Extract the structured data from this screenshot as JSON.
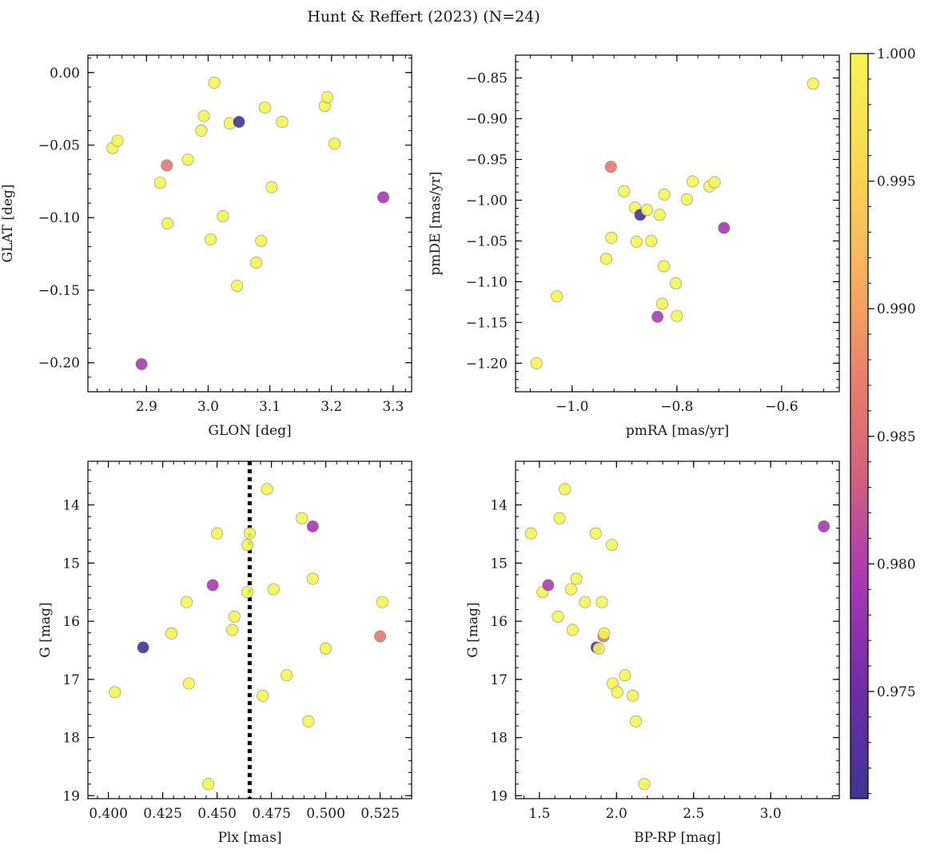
{
  "figure": {
    "title": "Hunt & Reffert (2023) (N=24)"
  },
  "colors": {
    "cmap_stops": [
      "#3d3593",
      "#6b2ea6",
      "#a737b3",
      "#d0607e",
      "#e9826a",
      "#f9b45c",
      "#f7da55",
      "#f4f552"
    ],
    "marker_edge": "#8a8a8a",
    "vline": "#000000"
  },
  "colorbar": {
    "min": 0.9708,
    "max": 1.0,
    "ticks": [
      0.975,
      0.98,
      0.985,
      0.99,
      0.995,
      1.0
    ],
    "tick_labels": [
      "0.975",
      "0.980",
      "0.985",
      "0.990",
      "0.995",
      "1.000"
    ]
  },
  "chart_data": [
    {
      "type": "scatter",
      "id": "glon-glat",
      "xlabel": "GLON [deg]",
      "ylabel": "GLAT [deg]",
      "xlim": [
        2.805,
        3.33
      ],
      "ylim": [
        -0.22,
        0.012
      ],
      "invert_y": false,
      "xticks": [
        2.9,
        3.0,
        3.1,
        3.2,
        3.3
      ],
      "xtick_labels": [
        "2.9",
        "3.0",
        "3.1",
        "3.2",
        "3.3"
      ],
      "xminor": 0.02,
      "yticks": [
        0.0,
        -0.05,
        -0.1,
        -0.15,
        -0.2
      ],
      "ytick_labels": [
        "0.00",
        "−0.05",
        "−0.10",
        "−0.15",
        "−0.20"
      ],
      "yminor": 0.01,
      "points": [
        {
          "x": 2.845,
          "y": -0.052,
          "c": 1.0
        },
        {
          "x": 2.853,
          "y": -0.047,
          "c": 1.0
        },
        {
          "x": 2.892,
          "y": -0.201,
          "c": 0.9795
        },
        {
          "x": 2.922,
          "y": -0.076,
          "c": 1.0
        },
        {
          "x": 2.933,
          "y": -0.064,
          "c": 0.9865
        },
        {
          "x": 2.934,
          "y": -0.104,
          "c": 1.0
        },
        {
          "x": 2.967,
          "y": -0.06,
          "c": 1.0
        },
        {
          "x": 2.989,
          "y": -0.04,
          "c": 1.0
        },
        {
          "x": 2.993,
          "y": -0.03,
          "c": 1.0
        },
        {
          "x": 3.004,
          "y": -0.115,
          "c": 1.0
        },
        {
          "x": 3.01,
          "y": -0.007,
          "c": 1.0
        },
        {
          "x": 3.024,
          "y": -0.099,
          "c": 1.0
        },
        {
          "x": 3.035,
          "y": -0.035,
          "c": 1.0
        },
        {
          "x": 3.047,
          "y": -0.147,
          "c": 1.0
        },
        {
          "x": 3.05,
          "y": -0.034,
          "c": 0.9712
        },
        {
          "x": 3.078,
          "y": -0.131,
          "c": 1.0
        },
        {
          "x": 3.086,
          "y": -0.116,
          "c": 1.0
        },
        {
          "x": 3.092,
          "y": -0.024,
          "c": 1.0
        },
        {
          "x": 3.103,
          "y": -0.079,
          "c": 1.0
        },
        {
          "x": 3.12,
          "y": -0.034,
          "c": 1.0
        },
        {
          "x": 3.189,
          "y": -0.023,
          "c": 1.0
        },
        {
          "x": 3.193,
          "y": -0.017,
          "c": 1.0
        },
        {
          "x": 3.205,
          "y": -0.049,
          "c": 1.0
        },
        {
          "x": 3.284,
          "y": -0.086,
          "c": 0.979
        }
      ]
    },
    {
      "type": "scatter",
      "id": "pmra-pmde",
      "xlabel": "pmRA [mas/yr]",
      "ylabel": "pmDE [mas/yr]",
      "xlim": [
        -1.108,
        -0.49
      ],
      "ylim": [
        -1.235,
        -0.822
      ],
      "invert_y": false,
      "xticks": [
        -1.0,
        -0.8,
        -0.6
      ],
      "xtick_labels": [
        "−1.0",
        "−0.8",
        "−0.6"
      ],
      "xminor": 0.04,
      "yticks": [
        -0.85,
        -0.9,
        -0.95,
        -1.0,
        -1.05,
        -1.1,
        -1.15,
        -1.2
      ],
      "ytick_labels": [
        "−0.85",
        "−0.90",
        "−0.95",
        "−1.00",
        "−1.05",
        "−1.10",
        "−1.15",
        "−1.20"
      ],
      "yminor": 0.01,
      "points": [
        {
          "x": -1.068,
          "y": -1.2,
          "c": 1.0
        },
        {
          "x": -1.029,
          "y": -1.118,
          "c": 1.0
        },
        {
          "x": -0.935,
          "y": -1.072,
          "c": 1.0
        },
        {
          "x": -0.926,
          "y": -0.959,
          "c": 0.9865
        },
        {
          "x": -0.925,
          "y": -1.046,
          "c": 1.0
        },
        {
          "x": -0.901,
          "y": -0.989,
          "c": 1.0
        },
        {
          "x": -0.88,
          "y": -1.009,
          "c": 1.0
        },
        {
          "x": -0.877,
          "y": -1.051,
          "c": 1.0
        },
        {
          "x": -0.87,
          "y": -1.018,
          "c": 0.9712
        },
        {
          "x": -0.857,
          "y": -1.012,
          "c": 1.0
        },
        {
          "x": -0.849,
          "y": -1.05,
          "c": 1.0
        },
        {
          "x": -0.837,
          "y": -1.143,
          "c": 0.9795
        },
        {
          "x": -0.833,
          "y": -1.018,
          "c": 1.0
        },
        {
          "x": -0.828,
          "y": -1.127,
          "c": 1.0
        },
        {
          "x": -0.825,
          "y": -1.081,
          "c": 1.0
        },
        {
          "x": -0.824,
          "y": -0.993,
          "c": 1.0
        },
        {
          "x": -0.802,
          "y": -1.102,
          "c": 1.0
        },
        {
          "x": -0.8,
          "y": -1.142,
          "c": 1.0
        },
        {
          "x": -0.781,
          "y": -0.999,
          "c": 1.0
        },
        {
          "x": -0.77,
          "y": -0.977,
          "c": 1.0
        },
        {
          "x": -0.738,
          "y": -0.983,
          "c": 1.0
        },
        {
          "x": -0.728,
          "y": -0.978,
          "c": 1.0
        },
        {
          "x": -0.71,
          "y": -1.034,
          "c": 0.979
        },
        {
          "x": -0.54,
          "y": -0.857,
          "c": 1.0
        }
      ]
    },
    {
      "type": "scatter",
      "id": "plx-g",
      "xlabel": "Plx [mas]",
      "ylabel": "G [mag]",
      "xlim": [
        0.3906,
        0.5395
      ],
      "ylim": [
        13.25,
        19.05
      ],
      "invert_y": true,
      "vline": {
        "x": 0.465,
        "style": "dotted"
      },
      "xticks": [
        0.4,
        0.425,
        0.45,
        0.475,
        0.5,
        0.525
      ],
      "xtick_labels": [
        "0.400",
        "0.425",
        "0.450",
        "0.475",
        "0.500",
        "0.525"
      ],
      "xminor": 0.005,
      "yticks": [
        14,
        15,
        16,
        17,
        18,
        19
      ],
      "ytick_labels": [
        "14",
        "15",
        "16",
        "17",
        "18",
        "19"
      ],
      "yminor": 0.2,
      "points": [
        {
          "x": 0.403,
          "y": 17.22,
          "c": 1.0
        },
        {
          "x": 0.416,
          "y": 16.45,
          "c": 0.9712
        },
        {
          "x": 0.429,
          "y": 16.21,
          "c": 1.0
        },
        {
          "x": 0.436,
          "y": 15.67,
          "c": 1.0
        },
        {
          "x": 0.437,
          "y": 17.07,
          "c": 1.0
        },
        {
          "x": 0.446,
          "y": 18.8,
          "c": 1.0
        },
        {
          "x": 0.448,
          "y": 15.38,
          "c": 0.9795
        },
        {
          "x": 0.45,
          "y": 14.49,
          "c": 1.0
        },
        {
          "x": 0.457,
          "y": 16.15,
          "c": 1.0
        },
        {
          "x": 0.458,
          "y": 15.92,
          "c": 1.0
        },
        {
          "x": 0.464,
          "y": 15.5,
          "c": 1.0
        },
        {
          "x": 0.464,
          "y": 14.69,
          "c": 1.0
        },
        {
          "x": 0.465,
          "y": 14.49,
          "c": 1.0
        },
        {
          "x": 0.471,
          "y": 17.28,
          "c": 1.0
        },
        {
          "x": 0.473,
          "y": 13.73,
          "c": 1.0
        },
        {
          "x": 0.476,
          "y": 15.45,
          "c": 1.0
        },
        {
          "x": 0.482,
          "y": 16.93,
          "c": 1.0
        },
        {
          "x": 0.489,
          "y": 14.23,
          "c": 1.0
        },
        {
          "x": 0.492,
          "y": 17.72,
          "c": 1.0
        },
        {
          "x": 0.494,
          "y": 14.37,
          "c": 0.979
        },
        {
          "x": 0.494,
          "y": 15.27,
          "c": 1.0
        },
        {
          "x": 0.5,
          "y": 16.47,
          "c": 1.0
        },
        {
          "x": 0.525,
          "y": 16.26,
          "c": 0.9865
        },
        {
          "x": 0.526,
          "y": 15.67,
          "c": 1.0
        }
      ]
    },
    {
      "type": "scatter",
      "id": "bprp-g",
      "xlabel": "BP-RP [mag]",
      "ylabel": "G [mag]",
      "xlim": [
        1.345,
        3.445
      ],
      "ylim": [
        13.25,
        19.05
      ],
      "invert_y": true,
      "xticks": [
        1.5,
        2.0,
        2.5,
        3.0
      ],
      "xtick_labels": [
        "1.5",
        "2.0",
        "2.5",
        "3.0"
      ],
      "xminor": 0.1,
      "yticks": [
        14,
        15,
        16,
        17,
        18,
        19
      ],
      "ytick_labels": [
        "14",
        "15",
        "16",
        "17",
        "18",
        "19"
      ],
      "yminor": 0.2,
      "points": [
        {
          "x": 1.445,
          "y": 14.49,
          "c": 1.0
        },
        {
          "x": 1.52,
          "y": 15.5,
          "c": 1.0
        },
        {
          "x": 1.557,
          "y": 15.38,
          "c": 0.9795
        },
        {
          "x": 1.62,
          "y": 15.92,
          "c": 1.0
        },
        {
          "x": 1.63,
          "y": 14.23,
          "c": 1.0
        },
        {
          "x": 1.665,
          "y": 13.73,
          "c": 1.0
        },
        {
          "x": 1.705,
          "y": 15.45,
          "c": 1.0
        },
        {
          "x": 1.715,
          "y": 16.15,
          "c": 1.0
        },
        {
          "x": 1.74,
          "y": 15.27,
          "c": 1.0
        },
        {
          "x": 1.795,
          "y": 15.67,
          "c": 1.0
        },
        {
          "x": 1.865,
          "y": 14.49,
          "c": 1.0
        },
        {
          "x": 1.87,
          "y": 16.45,
          "c": 0.9712
        },
        {
          "x": 1.885,
          "y": 16.47,
          "c": 1.0
        },
        {
          "x": 1.905,
          "y": 15.67,
          "c": 1.0
        },
        {
          "x": 1.915,
          "y": 16.26,
          "c": 0.9865
        },
        {
          "x": 1.92,
          "y": 16.21,
          "c": 1.0
        },
        {
          "x": 1.97,
          "y": 14.69,
          "c": 1.0
        },
        {
          "x": 1.975,
          "y": 17.07,
          "c": 1.0
        },
        {
          "x": 2.005,
          "y": 17.22,
          "c": 1.0
        },
        {
          "x": 2.055,
          "y": 16.93,
          "c": 1.0
        },
        {
          "x": 2.105,
          "y": 17.28,
          "c": 1.0
        },
        {
          "x": 2.125,
          "y": 17.72,
          "c": 1.0
        },
        {
          "x": 2.18,
          "y": 18.8,
          "c": 1.0
        },
        {
          "x": 3.345,
          "y": 14.37,
          "c": 0.979
        }
      ]
    }
  ]
}
